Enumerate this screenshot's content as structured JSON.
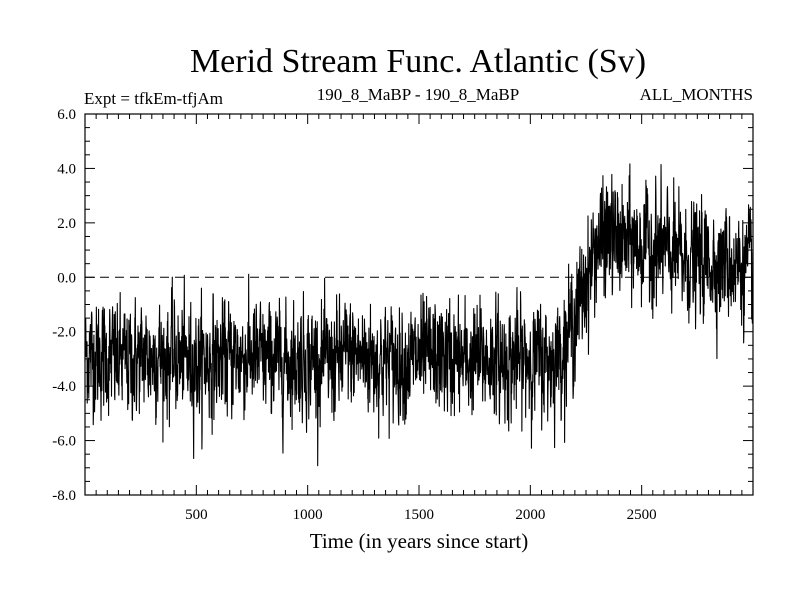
{
  "chart_data": {
    "type": "line",
    "title": "Merid Stream Func. Atlantic (Sv)",
    "subtitle_left": "Expt = tfkEm-tfjAm",
    "subtitle_center": "190_8_MaBP - 190_8_MaBP",
    "subtitle_right": "ALL_MONTHS",
    "xlabel": "Time (in years since start)",
    "ylabel": "",
    "xlim": [
      0,
      3000
    ],
    "ylim": [
      -8,
      6
    ],
    "xticks": [
      500,
      1000,
      1500,
      2000,
      2500
    ],
    "xtick_labels": [
      "500",
      "1000",
      "1500",
      "2000",
      "2500"
    ],
    "yticks": [
      -8,
      -6,
      -4,
      -2,
      0,
      2,
      4,
      6
    ],
    "ytick_labels": [
      "-8.0",
      "-6.0",
      "-4.0",
      "-2.0",
      "0.0",
      "2.0",
      "4.0",
      "6.0"
    ],
    "reference_line": {
      "y": 0,
      "style": "dashed"
    },
    "grid": false,
    "series": [
      {
        "color": "#000000",
        "description_points": {
          "x": [
            0,
            100,
            200,
            300,
            400,
            500,
            600,
            700,
            800,
            900,
            1000,
            1100,
            1200,
            1300,
            1400,
            1500,
            1600,
            1700,
            1800,
            1900,
            2000,
            2100,
            2150,
            2200,
            2250,
            2300,
            2350,
            2400,
            2500,
            2600,
            2700,
            2800,
            2900,
            3000
          ],
          "y": [
            -2.8,
            -3.0,
            -3.1,
            -2.9,
            -3.0,
            -3.1,
            -3.0,
            -2.9,
            -3.0,
            -3.1,
            -3.0,
            -3.2,
            -2.8,
            -3.0,
            -3.1,
            -3.0,
            -2.9,
            -3.1,
            -3.0,
            -3.1,
            -3.0,
            -3.1,
            -2.5,
            -1.5,
            -0.2,
            1.2,
            1.5,
            1.3,
            1.2,
            1.0,
            0.6,
            0.6,
            0.5,
            0.3
          ]
        },
        "noise_amplitude_sv": 0.95,
        "extremes": {
          "min": -7.1,
          "max": 4.6
        }
      }
    ]
  }
}
